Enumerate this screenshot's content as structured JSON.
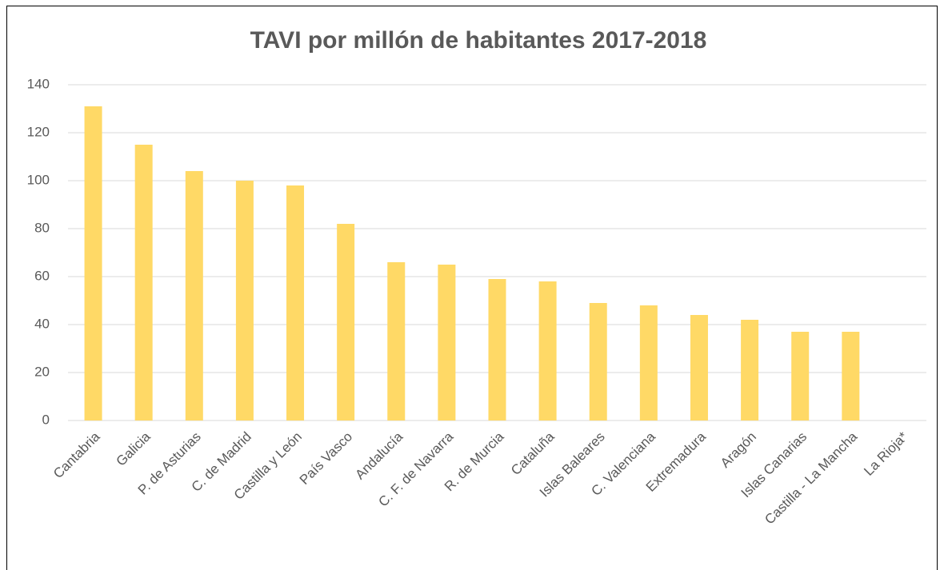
{
  "chart_data": {
    "type": "bar",
    "title": "TAVI por millón de habitantes 2017-2018",
    "categories": [
      "Cantabria",
      "Galicia",
      "P. de Asturias",
      "C. de Madrid",
      "Castilla y León",
      "País Vasco",
      "Andalucía",
      "C. F. de Navarra",
      "R. de Murcia",
      "Cataluña",
      "Islas Baleares",
      "C. Valenciana",
      "Extremadura",
      "Aragón",
      "Islas Canarias",
      "Castilla - La Mancha",
      "La Rioja*"
    ],
    "values": [
      131,
      115,
      104,
      100,
      98,
      82,
      66,
      65,
      59,
      58,
      49,
      48,
      44,
      42,
      37,
      37,
      null
    ],
    "color": "#ffd966",
    "ylim": [
      0,
      140
    ],
    "yticks": [
      0,
      20,
      40,
      60,
      80,
      100,
      120,
      140
    ],
    "grid": true
  }
}
